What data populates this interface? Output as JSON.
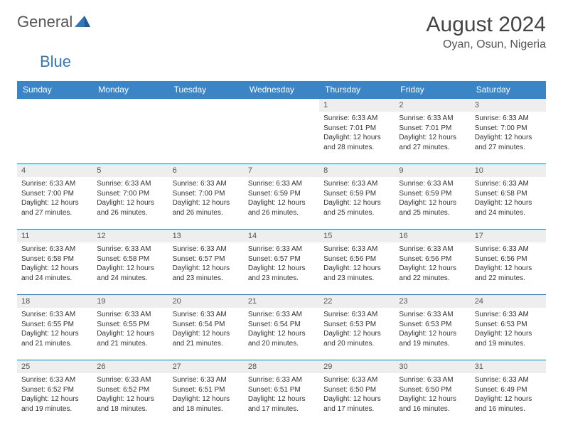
{
  "brand": {
    "part1": "General",
    "part2": "Blue"
  },
  "title": "August 2024",
  "location": "Oyan, Osun, Nigeria",
  "colors": {
    "header_bg": "#3b85c7",
    "border": "#2f78bd",
    "daynum_bg": "#eeeeee",
    "text": "#333333"
  },
  "weekdays": [
    "Sunday",
    "Monday",
    "Tuesday",
    "Wednesday",
    "Thursday",
    "Friday",
    "Saturday"
  ],
  "weeks": [
    [
      null,
      null,
      null,
      null,
      {
        "n": "1",
        "sr": "6:33 AM",
        "ss": "7:01 PM",
        "dl": "12 hours and 28 minutes."
      },
      {
        "n": "2",
        "sr": "6:33 AM",
        "ss": "7:01 PM",
        "dl": "12 hours and 27 minutes."
      },
      {
        "n": "3",
        "sr": "6:33 AM",
        "ss": "7:00 PM",
        "dl": "12 hours and 27 minutes."
      }
    ],
    [
      {
        "n": "4",
        "sr": "6:33 AM",
        "ss": "7:00 PM",
        "dl": "12 hours and 27 minutes."
      },
      {
        "n": "5",
        "sr": "6:33 AM",
        "ss": "7:00 PM",
        "dl": "12 hours and 26 minutes."
      },
      {
        "n": "6",
        "sr": "6:33 AM",
        "ss": "7:00 PM",
        "dl": "12 hours and 26 minutes."
      },
      {
        "n": "7",
        "sr": "6:33 AM",
        "ss": "6:59 PM",
        "dl": "12 hours and 26 minutes."
      },
      {
        "n": "8",
        "sr": "6:33 AM",
        "ss": "6:59 PM",
        "dl": "12 hours and 25 minutes."
      },
      {
        "n": "9",
        "sr": "6:33 AM",
        "ss": "6:59 PM",
        "dl": "12 hours and 25 minutes."
      },
      {
        "n": "10",
        "sr": "6:33 AM",
        "ss": "6:58 PM",
        "dl": "12 hours and 24 minutes."
      }
    ],
    [
      {
        "n": "11",
        "sr": "6:33 AM",
        "ss": "6:58 PM",
        "dl": "12 hours and 24 minutes."
      },
      {
        "n": "12",
        "sr": "6:33 AM",
        "ss": "6:58 PM",
        "dl": "12 hours and 24 minutes."
      },
      {
        "n": "13",
        "sr": "6:33 AM",
        "ss": "6:57 PM",
        "dl": "12 hours and 23 minutes."
      },
      {
        "n": "14",
        "sr": "6:33 AM",
        "ss": "6:57 PM",
        "dl": "12 hours and 23 minutes."
      },
      {
        "n": "15",
        "sr": "6:33 AM",
        "ss": "6:56 PM",
        "dl": "12 hours and 23 minutes."
      },
      {
        "n": "16",
        "sr": "6:33 AM",
        "ss": "6:56 PM",
        "dl": "12 hours and 22 minutes."
      },
      {
        "n": "17",
        "sr": "6:33 AM",
        "ss": "6:56 PM",
        "dl": "12 hours and 22 minutes."
      }
    ],
    [
      {
        "n": "18",
        "sr": "6:33 AM",
        "ss": "6:55 PM",
        "dl": "12 hours and 21 minutes."
      },
      {
        "n": "19",
        "sr": "6:33 AM",
        "ss": "6:55 PM",
        "dl": "12 hours and 21 minutes."
      },
      {
        "n": "20",
        "sr": "6:33 AM",
        "ss": "6:54 PM",
        "dl": "12 hours and 21 minutes."
      },
      {
        "n": "21",
        "sr": "6:33 AM",
        "ss": "6:54 PM",
        "dl": "12 hours and 20 minutes."
      },
      {
        "n": "22",
        "sr": "6:33 AM",
        "ss": "6:53 PM",
        "dl": "12 hours and 20 minutes."
      },
      {
        "n": "23",
        "sr": "6:33 AM",
        "ss": "6:53 PM",
        "dl": "12 hours and 19 minutes."
      },
      {
        "n": "24",
        "sr": "6:33 AM",
        "ss": "6:53 PM",
        "dl": "12 hours and 19 minutes."
      }
    ],
    [
      {
        "n": "25",
        "sr": "6:33 AM",
        "ss": "6:52 PM",
        "dl": "12 hours and 19 minutes."
      },
      {
        "n": "26",
        "sr": "6:33 AM",
        "ss": "6:52 PM",
        "dl": "12 hours and 18 minutes."
      },
      {
        "n": "27",
        "sr": "6:33 AM",
        "ss": "6:51 PM",
        "dl": "12 hours and 18 minutes."
      },
      {
        "n": "28",
        "sr": "6:33 AM",
        "ss": "6:51 PM",
        "dl": "12 hours and 17 minutes."
      },
      {
        "n": "29",
        "sr": "6:33 AM",
        "ss": "6:50 PM",
        "dl": "12 hours and 17 minutes."
      },
      {
        "n": "30",
        "sr": "6:33 AM",
        "ss": "6:50 PM",
        "dl": "12 hours and 16 minutes."
      },
      {
        "n": "31",
        "sr": "6:33 AM",
        "ss": "6:49 PM",
        "dl": "12 hours and 16 minutes."
      }
    ]
  ],
  "labels": {
    "sunrise": "Sunrise:",
    "sunset": "Sunset:",
    "daylight": "Daylight:"
  }
}
